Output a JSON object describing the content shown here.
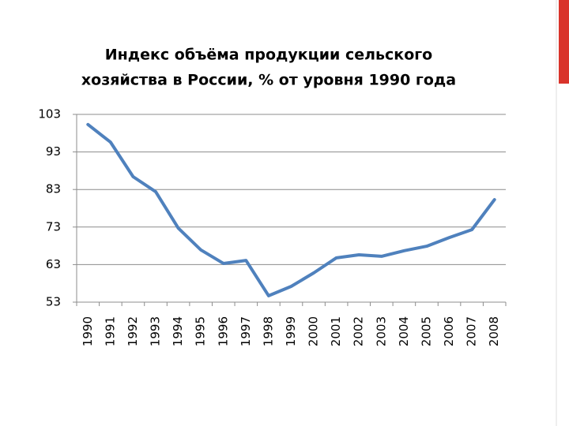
{
  "chart_data": {
    "type": "line",
    "title": [
      "Индекс объёма продукции сельского",
      "хозяйства в России, % от уровня 1990 года"
    ],
    "categories": [
      "1990",
      "1991",
      "1992",
      "1993",
      "1994",
      "1995",
      "1996",
      "1997",
      "1998",
      "1999",
      "2000",
      "2001",
      "2002",
      "2003",
      "2004",
      "2005",
      "2006",
      "2007",
      "2008"
    ],
    "values": [
      100.3,
      95.6,
      86.4,
      82.4,
      72.7,
      66.9,
      63.3,
      64.1,
      54.7,
      57.2,
      60.8,
      64.8,
      65.6,
      65.2,
      66.7,
      67.9,
      70.2,
      72.3,
      80.3
    ],
    "color": "#4f81bd",
    "ylim": [
      53,
      103
    ],
    "yticks": [
      53,
      63,
      73,
      83,
      93,
      103
    ],
    "grid": true
  }
}
